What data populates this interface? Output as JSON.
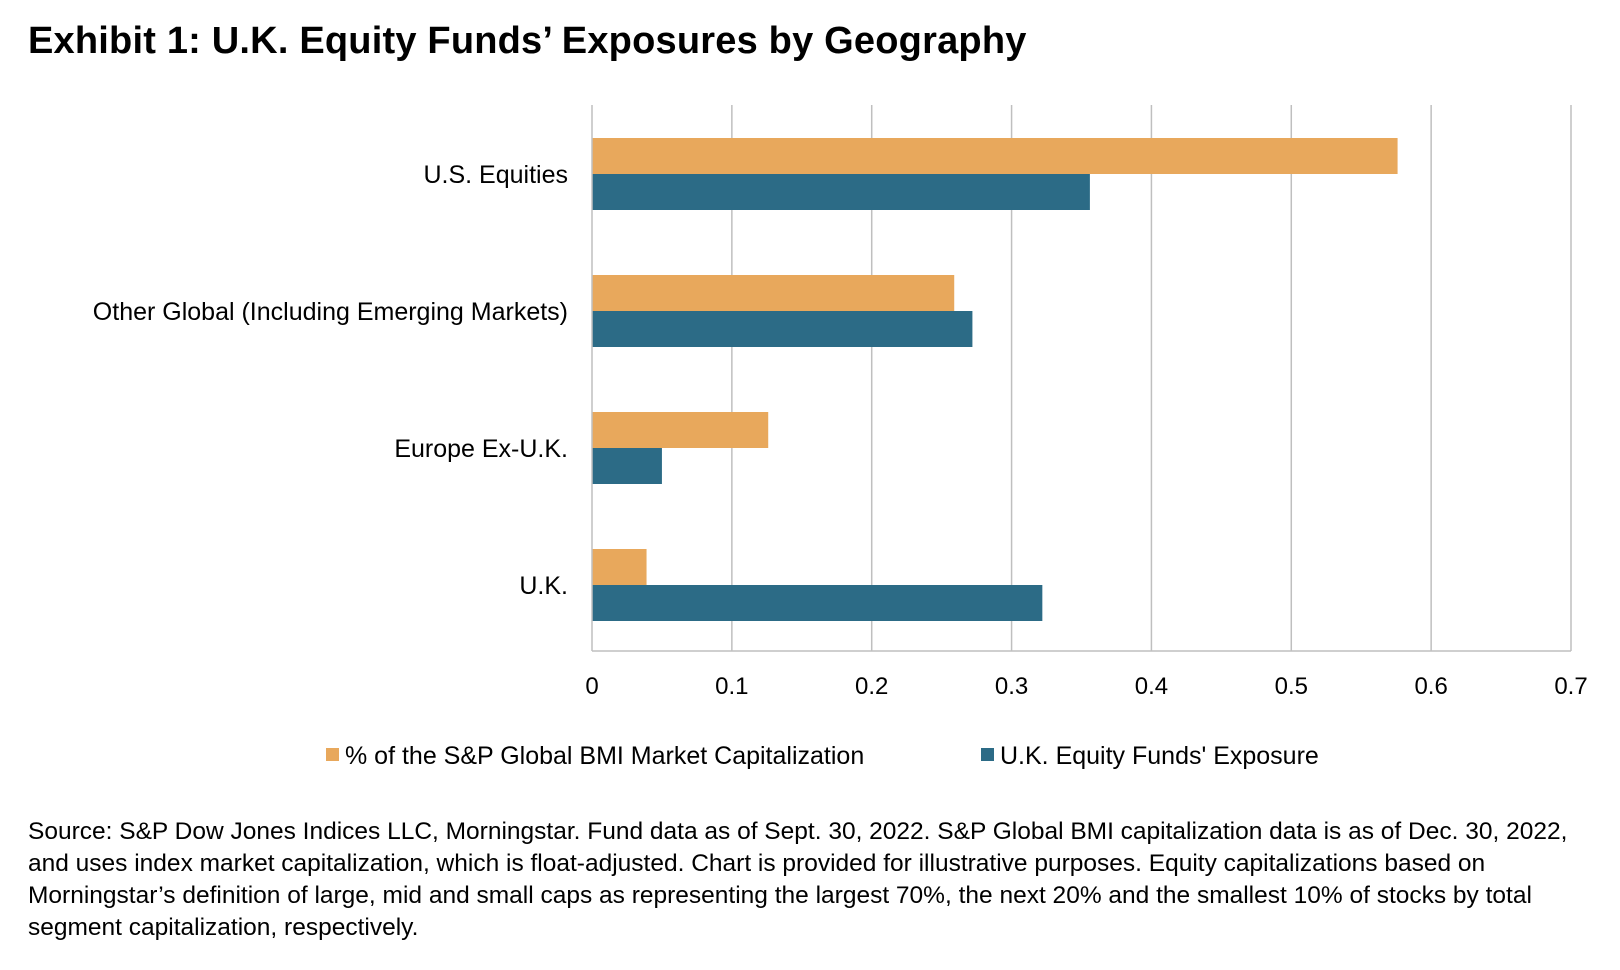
{
  "title": "Exhibit 1: U.K. Equity Funds’ Exposures by Geography",
  "source": "Source: S&P Dow Jones Indices LLC, Morningstar. Fund data as of Sept. 30, 2022. S&P Global BMI capitalization data is as of Dec. 30, 2022, and uses index market capitalization, which is float-adjusted. Chart is provided for illustrative purposes. Equity capitalizations based on Morningstar’s definition of large, mid and small caps as representing the largest 70%, the next 20% and the smallest 10% of stocks by total segment capitalization, respectively.",
  "chart_data": {
    "type": "bar",
    "orientation": "horizontal",
    "categories": [
      "U.S. Equities",
      "Other Global (Including Emerging Markets)",
      "Europe Ex-U.K.",
      "U.K."
    ],
    "series": [
      {
        "name": "% of the S&P Global BMI Market Capitalization",
        "color": "#E8A85C",
        "values": [
          0.576,
          0.259,
          0.126,
          0.039
        ]
      },
      {
        "name": "U.K. Equity Funds' Exposure",
        "color": "#2C6B86",
        "values": [
          0.356,
          0.272,
          0.05,
          0.322
        ]
      }
    ],
    "xlim": [
      0,
      0.7
    ],
    "xticks": [
      "0",
      "0.1",
      "0.2",
      "0.3",
      "0.4",
      "0.5",
      "0.6",
      "0.7"
    ],
    "grid": "vertical",
    "legend": "bottom"
  }
}
